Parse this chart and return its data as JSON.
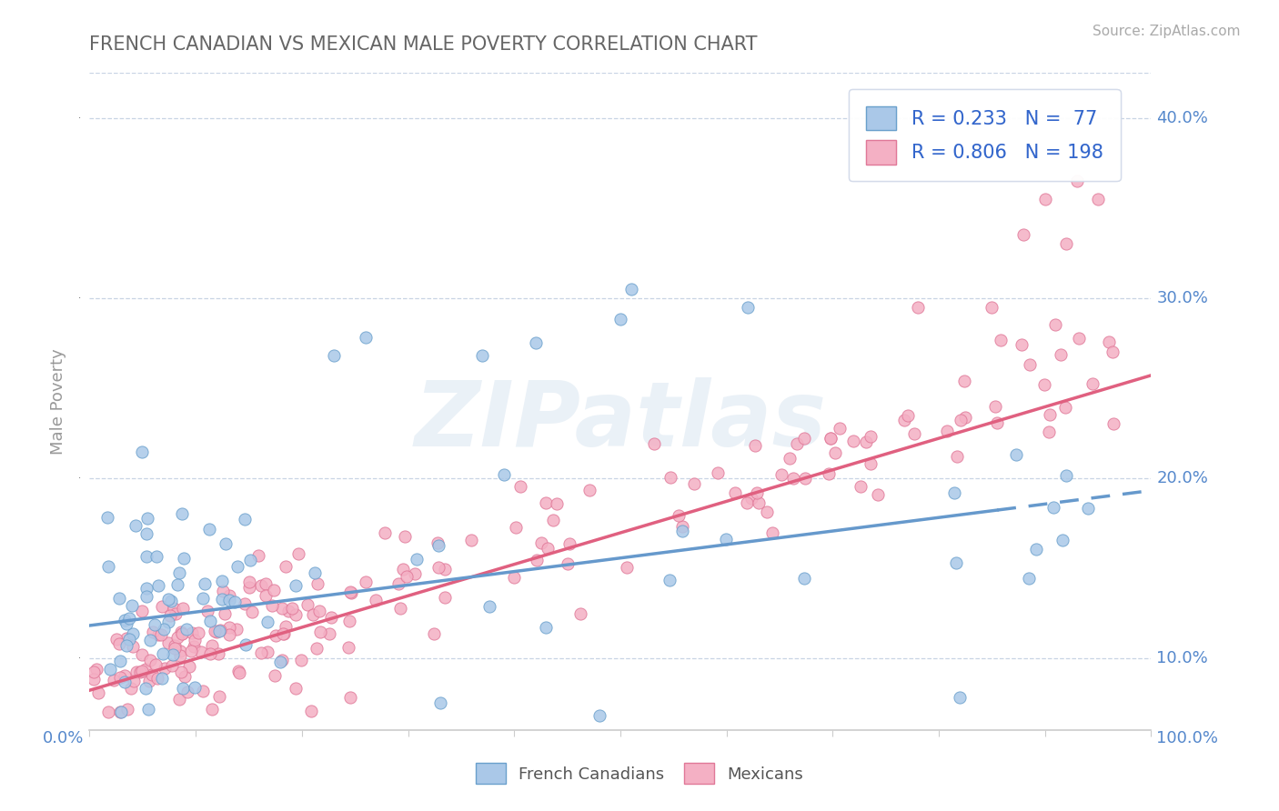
{
  "title": "FRENCH CANADIAN VS MEXICAN MALE POVERTY CORRELATION CHART",
  "source": "Source: ZipAtlas.com",
  "ylabel": "Male Poverty",
  "yticks": [
    0.1,
    0.2,
    0.3,
    0.4
  ],
  "ytick_labels": [
    "10.0%",
    "20.0%",
    "30.0%",
    "40.0%"
  ],
  "xlim": [
    0.0,
    1.0
  ],
  "ylim": [
    0.06,
    0.425
  ],
  "blue_R": 0.233,
  "blue_N": 77,
  "pink_R": 0.806,
  "pink_N": 198,
  "blue_scatter_color": "#aac8e8",
  "blue_scatter_edge": "#6aa0cc",
  "pink_scatter_color": "#f4b0c4",
  "pink_scatter_edge": "#e07898",
  "blue_line_color": "#6699cc",
  "pink_line_color": "#e06080",
  "legend_label_blue": "French Canadians",
  "legend_label_pink": "Mexicans",
  "background_color": "#ffffff",
  "grid_color": "#c8d4e4",
  "title_color": "#666666",
  "source_color": "#aaaaaa",
  "watermark": "ZIPatlas",
  "axis_tick_color": "#5588cc",
  "ylabel_color": "#999999",
  "spine_color": "#cccccc"
}
